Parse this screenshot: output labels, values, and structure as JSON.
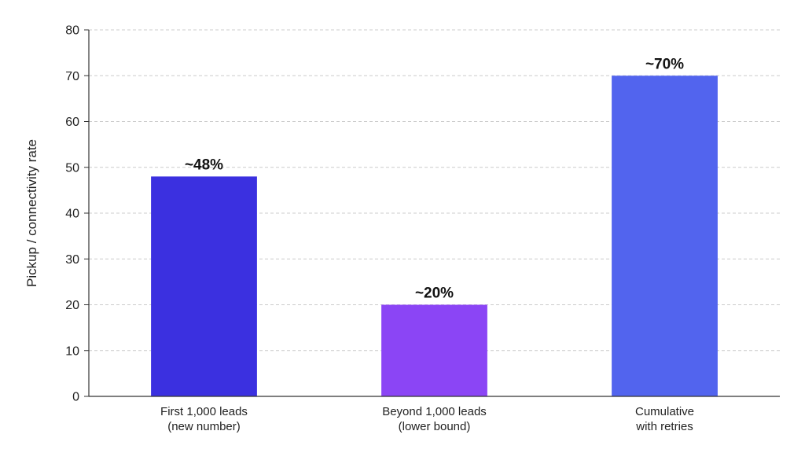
{
  "chart_data": {
    "type": "bar",
    "title": "",
    "xlabel": "",
    "ylabel": "Pickup / connectivity rate",
    "ylim": [
      0,
      80
    ],
    "yticks": [
      0,
      10,
      20,
      30,
      40,
      50,
      60,
      70,
      80
    ],
    "grid": true,
    "categories": [
      [
        "First 1,000 leads",
        "(new number)"
      ],
      [
        "Beyond 1,000 leads",
        "(lower bound)"
      ],
      [
        "Cumulative",
        "with retries"
      ]
    ],
    "values": [
      48,
      20,
      70
    ],
    "value_labels": [
      "~48%",
      "~20%",
      "~70%"
    ],
    "colors": [
      "#3b30e0",
      "#8b45f5",
      "#5264ee"
    ]
  }
}
